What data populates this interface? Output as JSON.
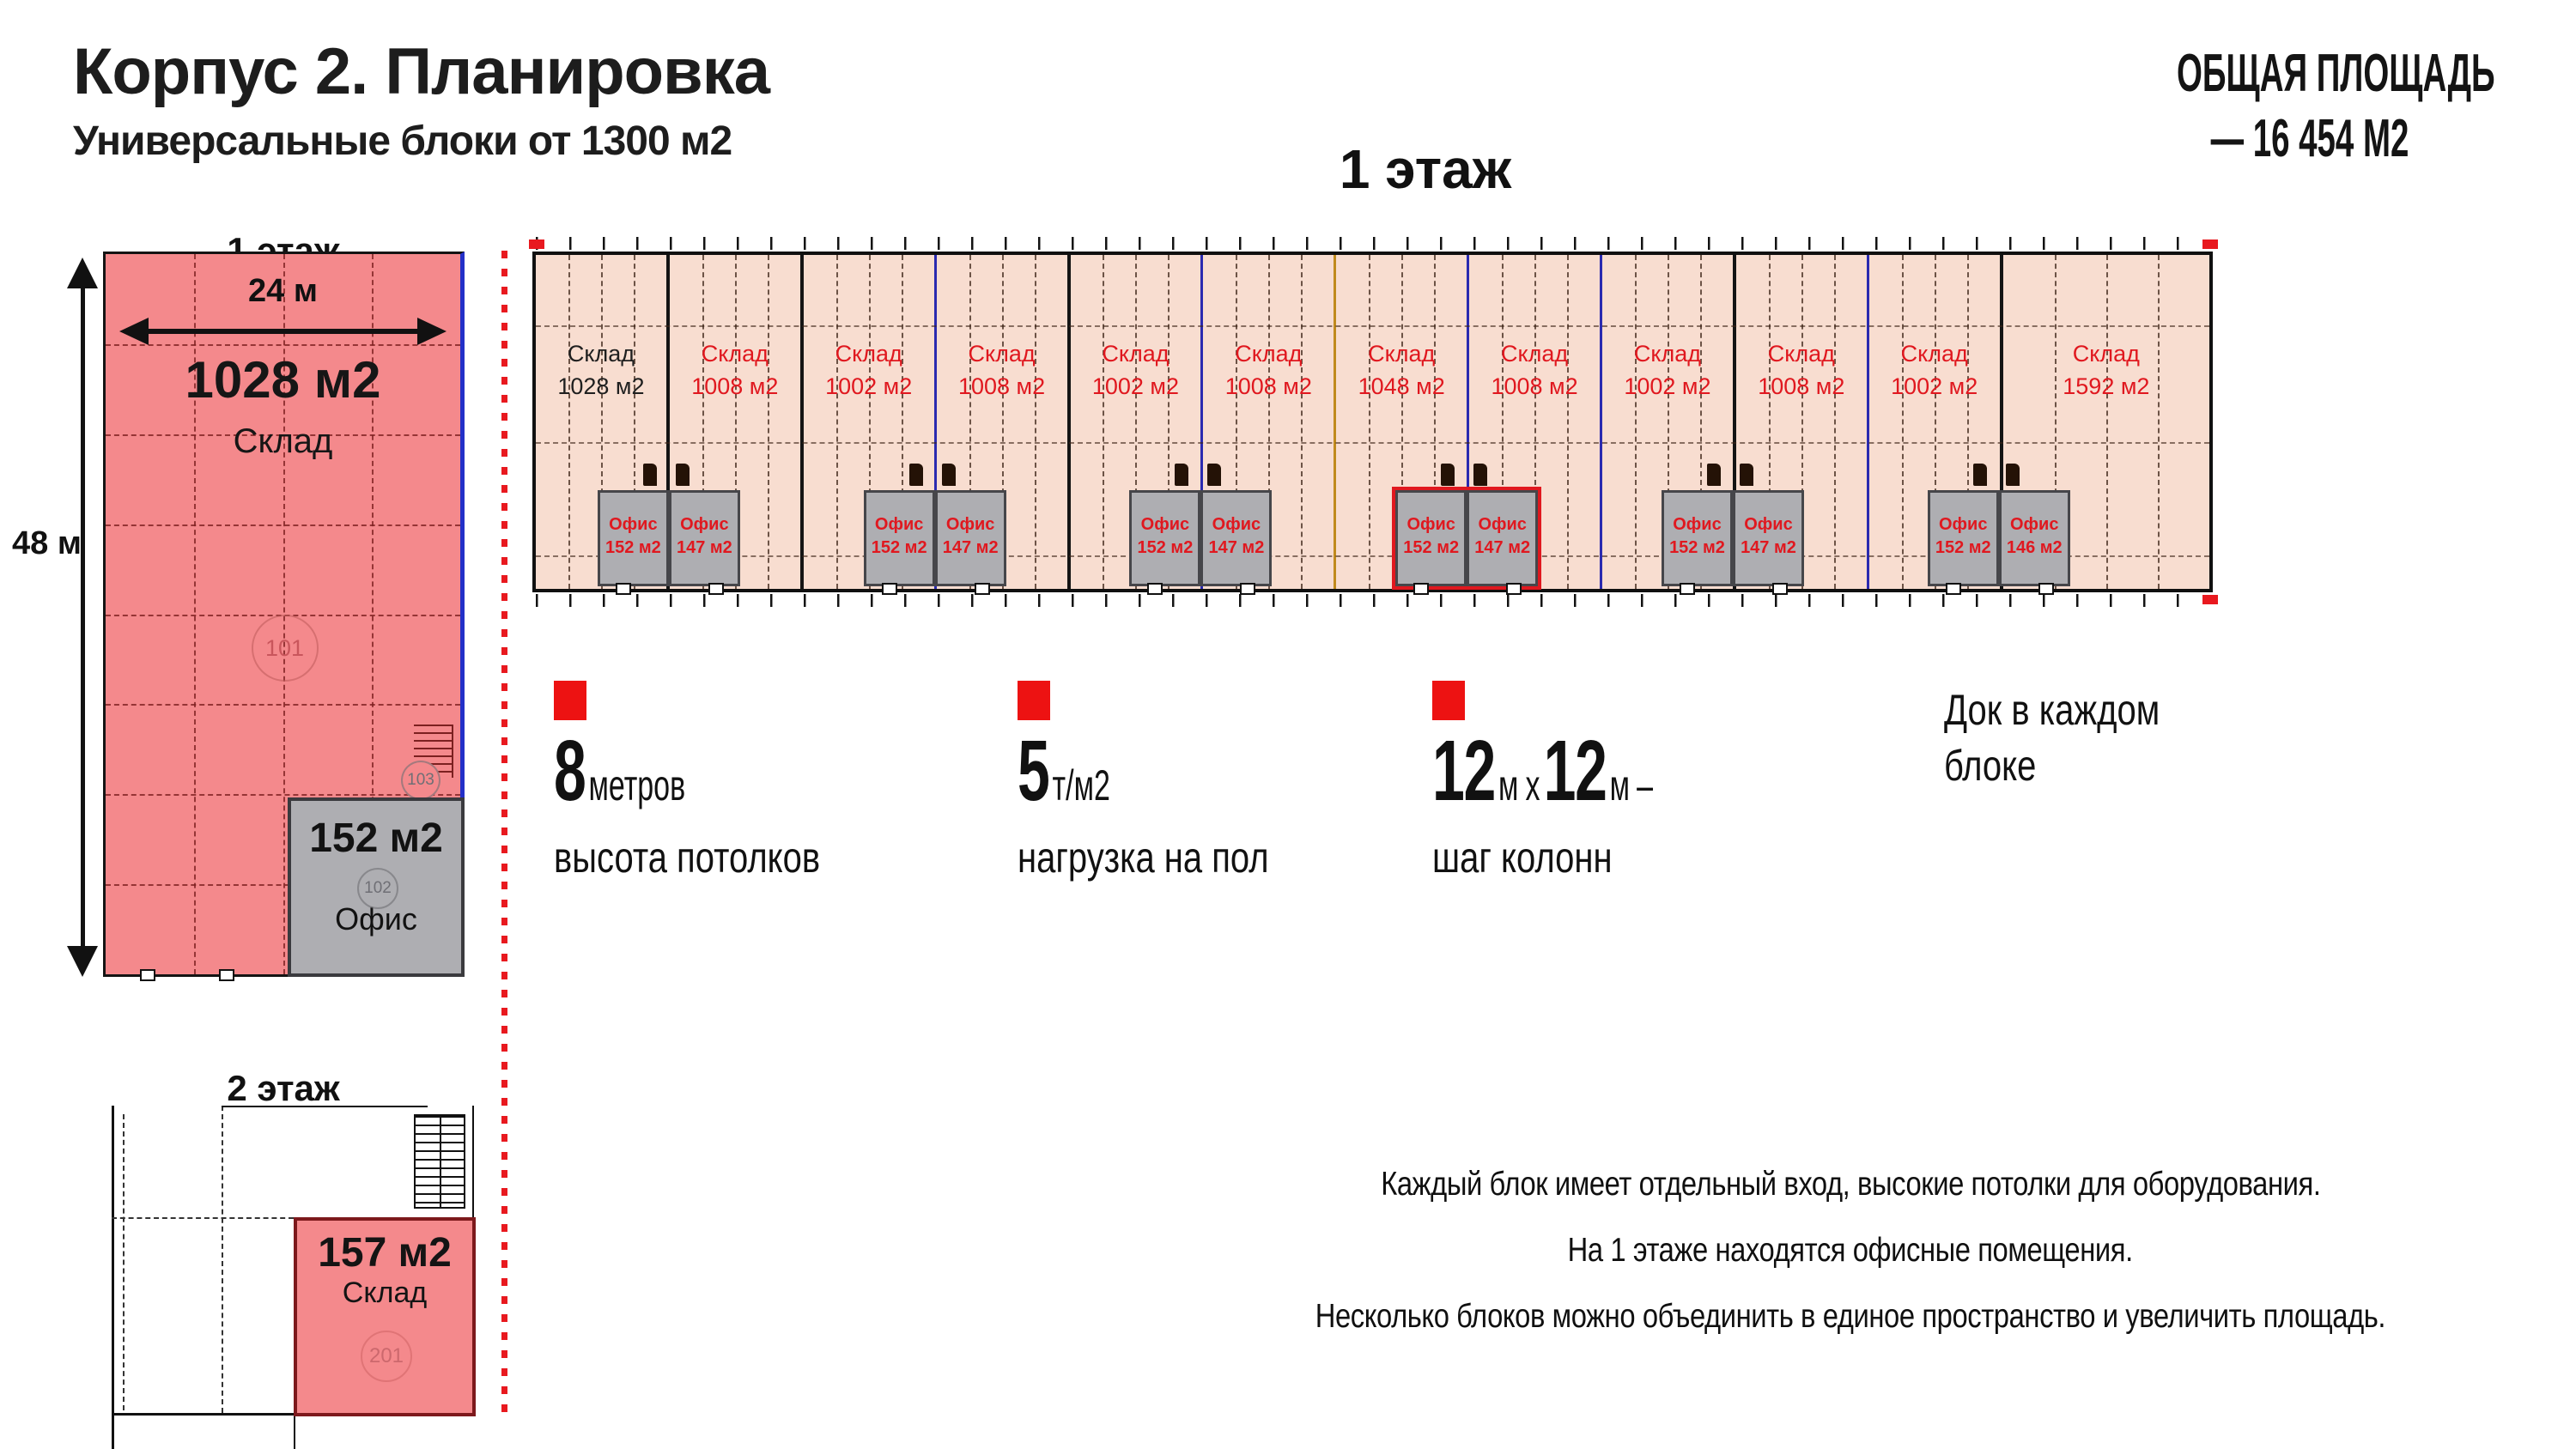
{
  "header": {
    "title": "Корпус 2. Планировка",
    "subtitle": "Универсальные блоки от 1300 м2"
  },
  "total_area": {
    "line1": "ОБЩАЯ ПЛОЩАДЬ",
    "line2": "— 16 454  М2"
  },
  "main_plan": {
    "heading": "1 этаж",
    "blocks": [
      {
        "name": "Склад",
        "area": "1028 м2",
        "text_color": "#1f1f1f",
        "units": 24
      },
      {
        "name": "Склад",
        "area": "1008 м2",
        "text_color": "#e0181f",
        "units": 24
      },
      {
        "name": "Склад",
        "area": "1002 м2",
        "text_color": "#e0181f",
        "units": 24
      },
      {
        "name": "Склад",
        "area": "1008 м2",
        "text_color": "#e0181f",
        "units": 24
      },
      {
        "name": "Склад",
        "area": "1002 м2",
        "text_color": "#e0181f",
        "units": 24
      },
      {
        "name": "Склад",
        "area": "1008 м2",
        "text_color": "#e0181f",
        "units": 24
      },
      {
        "name": "Склад",
        "area": "1048 м2",
        "text_color": "#e0181f",
        "units": 24
      },
      {
        "name": "Склад",
        "area": "1008 м2",
        "text_color": "#e0181f",
        "units": 24
      },
      {
        "name": "Склад",
        "area": "1002 м2",
        "text_color": "#e0181f",
        "units": 24
      },
      {
        "name": "Склад",
        "area": "1008 м2",
        "text_color": "#e0181f",
        "units": 24
      },
      {
        "name": "Склад",
        "area": "1002 м2",
        "text_color": "#e0181f",
        "units": 24
      },
      {
        "name": "Склад",
        "area": "1592 м2",
        "text_color": "#e0181f",
        "units": 38
      }
    ],
    "divider_colors": [
      "#141414",
      "#141414",
      "#2a2ab0",
      "#141414",
      "#2a2ab0",
      "#c08a1d",
      "#2a2ab0",
      "#2a2ab0",
      "#141414",
      "#2a2ab0",
      "#141414"
    ],
    "office_pairs": [
      {
        "divider_index": 0,
        "left_name": "Офис",
        "left_area": "152 м2",
        "right_name": "Офис",
        "right_area": "147 м2",
        "highlight": false
      },
      {
        "divider_index": 2,
        "left_name": "Офис",
        "left_area": "152 м2",
        "right_name": "Офис",
        "right_area": "147 м2",
        "highlight": false
      },
      {
        "divider_index": 4,
        "left_name": "Офис",
        "left_area": "152 м2",
        "right_name": "Офис",
        "right_area": "147 м2",
        "highlight": false
      },
      {
        "divider_index": 6,
        "left_name": "Офис",
        "left_area": "152 м2",
        "right_name": "Офис",
        "right_area": "147 м2",
        "highlight": true
      },
      {
        "divider_index": 8,
        "left_name": "Офис",
        "left_area": "152 м2",
        "right_name": "Офис",
        "right_area": "147 м2",
        "highlight": false
      },
      {
        "divider_index": 10,
        "left_name": "Офис",
        "left_area": "152 м2",
        "right_name": "Офис",
        "right_area": "146 м2",
        "highlight": false
      }
    ]
  },
  "floor1_detail": {
    "heading": "1 этаж",
    "width_label": "24 м",
    "height_label": "48 м",
    "warehouse_area": "1028 м2",
    "warehouse_name": "Склад",
    "warehouse_room": "101",
    "office_area": "152 м2",
    "office_name": "Офис",
    "office_room": "102",
    "office_room2": "103"
  },
  "floor2_detail": {
    "heading": "2 этаж",
    "warehouse_area": "157 м2",
    "warehouse_name": "Склад",
    "warehouse_room": "201"
  },
  "features": [
    {
      "big": "8",
      "small": "метров",
      "caption": "высота потолков"
    },
    {
      "big": "5",
      "small": "т/м2",
      "caption": "нагрузка на пол"
    },
    {
      "num1": "12",
      "unit1": "м",
      "x": "х",
      "num2": "12",
      "unit2": "м",
      "dash": "–",
      "caption": "шаг колонн"
    },
    {
      "line1": "Док в каждом",
      "line2": "блоке"
    }
  ],
  "notes": [
    "Каждый блок имеет отдельный вход, высокие потолки для оборудования.",
    "На 1 этаже находятся офисные помещения.",
    "Несколько блоков можно объединить в единое пространство и увеличить площадь."
  ],
  "colors": {
    "plan_fill": "#f8ddd0",
    "detail_fill": "#f4898c",
    "office_fill": "#aeaeb2",
    "red_text": "#e0181f",
    "accent_red": "#ed1212",
    "blue_line": "#2a2ab0",
    "gold_line": "#c08a1d"
  }
}
